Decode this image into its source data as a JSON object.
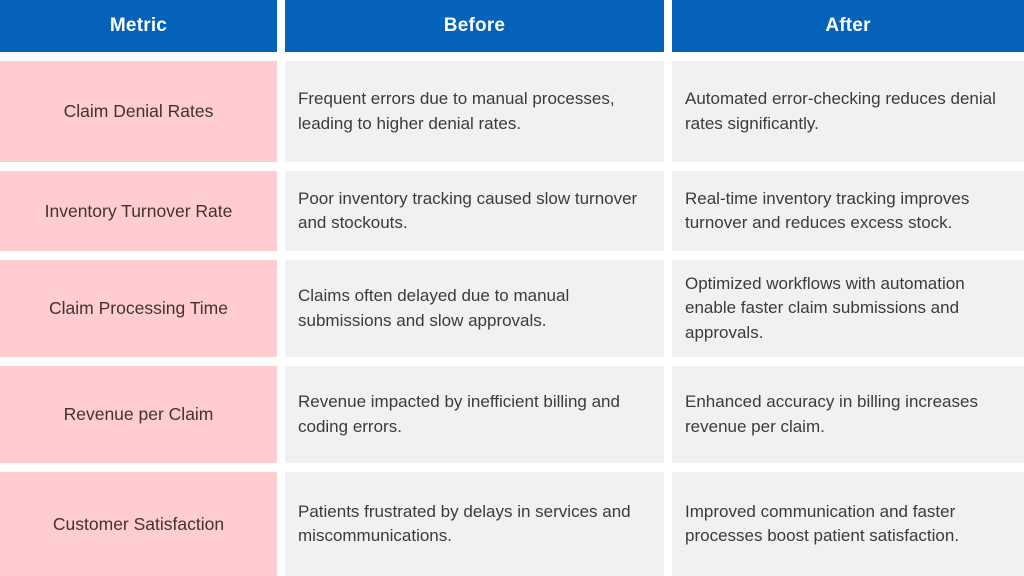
{
  "table": {
    "headers": [
      "Metric",
      "Before",
      "After"
    ],
    "rows": [
      {
        "metric": "Claim Denial Rates",
        "before": "Frequent errors due to manual processes, leading to higher denial rates.",
        "after": "Automated error-checking reduces denial rates significantly."
      },
      {
        "metric": "Inventory Turnover Rate",
        "before": "Poor inventory tracking caused slow turnover and stockouts.",
        "after": "Real-time inventory tracking improves turnover and reduces excess stock."
      },
      {
        "metric": "Claim Processing Time",
        "before": "Claims often delayed due to manual submissions and slow approvals.",
        "after": "Optimized workflows with automation enable faster claim submissions and approvals."
      },
      {
        "metric": "Revenue per Claim",
        "before": "Revenue impacted by inefficient billing and coding errors.",
        "after": "Enhanced accuracy in billing increases revenue per claim."
      },
      {
        "metric": "Customer Satisfaction",
        "before": "Patients frustrated by delays in services and miscommunications.",
        "after": "Improved communication and faster processes boost patient satisfaction."
      }
    ],
    "colors": {
      "header_bg": "#0562b9",
      "header_text": "#ffffff",
      "metric_bg": "#ffcdd0",
      "metric_text": "#433134",
      "cell_bg": "#f2f1f1",
      "body_text": "#3b3b3b",
      "gap_color": "#ffffff"
    }
  }
}
